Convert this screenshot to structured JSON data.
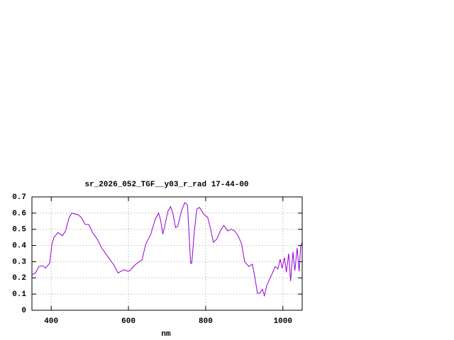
{
  "chart_data": {
    "type": "line",
    "title": "sr_2026_052_TGF__y03_r_rad 17-44-00",
    "x_label": "nm",
    "x": [
      350,
      359,
      368,
      378,
      385,
      396,
      402,
      407,
      418,
      429,
      437,
      446,
      453,
      470,
      479,
      488,
      497,
      507,
      519,
      532,
      547,
      562,
      573,
      580,
      589,
      599,
      604,
      617,
      628,
      635,
      645,
      658,
      669,
      678,
      683,
      689,
      694,
      702,
      709,
      715,
      722,
      728,
      737,
      746,
      753,
      761,
      764,
      770,
      777,
      784,
      796,
      805,
      812,
      820,
      829,
      838,
      847,
      857,
      866,
      875,
      884,
      893,
      901,
      912,
      921,
      927,
      934,
      941,
      947,
      952,
      958,
      965,
      973,
      980,
      987,
      993,
      998,
      1004,
      1009,
      1015,
      1020,
      1026,
      1031,
      1037,
      1042,
      1046,
      1050
    ],
    "values": [
      0.22,
      0.23,
      0.27,
      0.275,
      0.26,
      0.29,
      0.41,
      0.45,
      0.48,
      0.46,
      0.49,
      0.57,
      0.6,
      0.59,
      0.57,
      0.53,
      0.53,
      0.48,
      0.44,
      0.38,
      0.33,
      0.28,
      0.23,
      0.24,
      0.25,
      0.24,
      0.245,
      0.28,
      0.3,
      0.31,
      0.41,
      0.47,
      0.56,
      0.6,
      0.56,
      0.47,
      0.52,
      0.61,
      0.64,
      0.6,
      0.51,
      0.52,
      0.61,
      0.665,
      0.65,
      0.29,
      0.29,
      0.47,
      0.625,
      0.635,
      0.59,
      0.575,
      0.51,
      0.42,
      0.44,
      0.49,
      0.525,
      0.49,
      0.5,
      0.49,
      0.46,
      0.41,
      0.3,
      0.27,
      0.285,
      0.21,
      0.105,
      0.105,
      0.13,
      0.09,
      0.15,
      0.19,
      0.23,
      0.27,
      0.255,
      0.315,
      0.26,
      0.325,
      0.235,
      0.35,
      0.18,
      0.36,
      0.245,
      0.385,
      0.24,
      0.395,
      0.42
    ],
    "color": "#9400d3",
    "xlim": [
      350,
      1050
    ],
    "xticks": [
      400,
      600,
      800,
      1000
    ],
    "ylim": [
      0,
      0.7
    ],
    "yticks": [
      0,
      0.1,
      0.2,
      0.3,
      0.4,
      0.5,
      0.6,
      0.7
    ],
    "grid": true
  }
}
